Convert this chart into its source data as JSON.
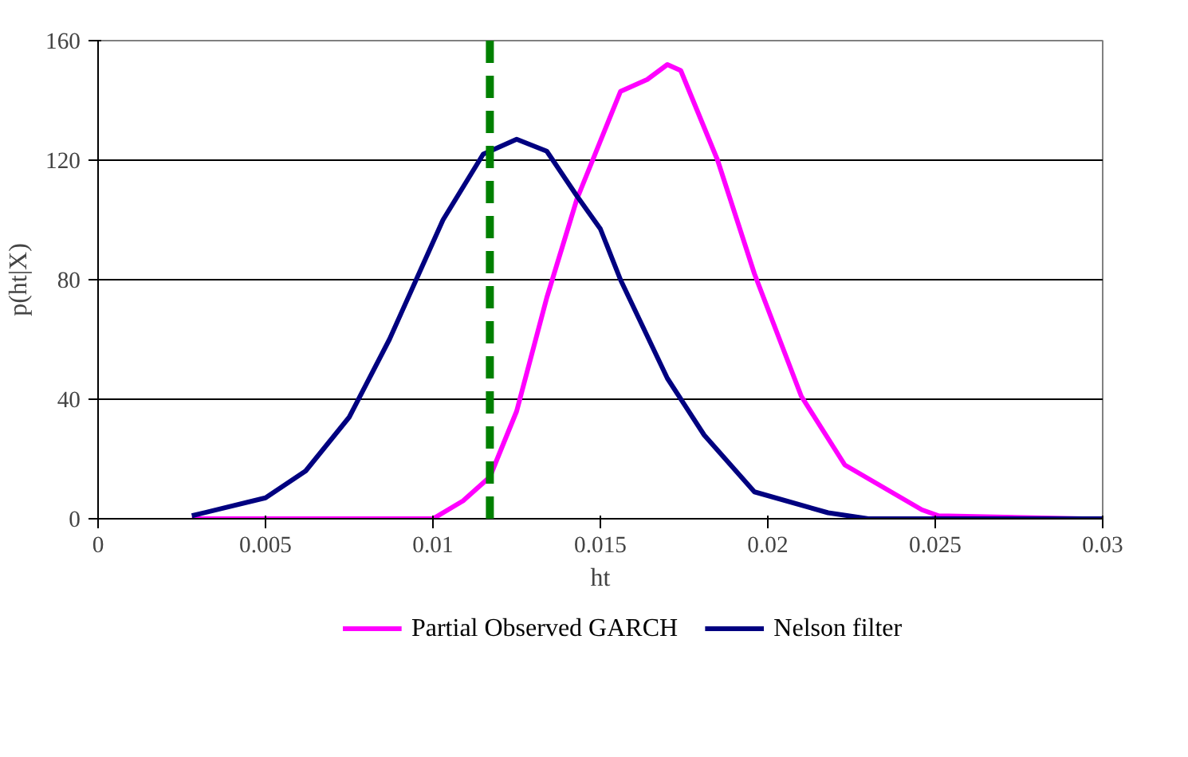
{
  "chart_data": {
    "type": "line",
    "xlabel": "ht",
    "ylabel": "p(ht|X)",
    "xlim": [
      0,
      0.03
    ],
    "ylim": [
      0,
      160
    ],
    "xticks": [
      0,
      0.005,
      0.01,
      0.015,
      0.02,
      0.025,
      0.03
    ],
    "yticks": [
      0,
      40,
      80,
      120,
      160
    ],
    "grid": "y",
    "legend": "bottom",
    "line_style": "solid",
    "marker": "none",
    "series": [
      {
        "name": "Partial Observed GARCH",
        "color": "#ff00ff",
        "x": [
          0.0028,
          0.005,
          0.0075,
          0.0098,
          0.01,
          0.0109,
          0.0117,
          0.0125,
          0.0134,
          0.0143,
          0.0156,
          0.0164,
          0.017,
          0.0174,
          0.0185,
          0.0196,
          0.021,
          0.0223,
          0.0246,
          0.0251,
          0.0294
        ],
        "values": [
          0,
          0,
          0,
          0,
          0,
          6,
          14,
          36,
          74,
          107,
          143,
          147,
          152,
          150,
          120,
          82,
          41,
          18,
          3,
          1,
          0
        ]
      },
      {
        "name": "Nelson filter",
        "color": "#000080",
        "x": [
          0.0028,
          0.005,
          0.0062,
          0.0075,
          0.0087,
          0.0095,
          0.0103,
          0.0115,
          0.0125,
          0.0134,
          0.0143,
          0.015,
          0.0156,
          0.017,
          0.0181,
          0.0196,
          0.0218,
          0.023,
          0.03
        ],
        "values": [
          1,
          7,
          16,
          34,
          60,
          80,
          100,
          122,
          127,
          123,
          108,
          97,
          80,
          47,
          28,
          9,
          2,
          0,
          0
        ]
      }
    ],
    "ref_lines": [
      {
        "axis": "x",
        "value": 0.0117,
        "color": "#008000",
        "line_style": "dashed"
      }
    ]
  }
}
